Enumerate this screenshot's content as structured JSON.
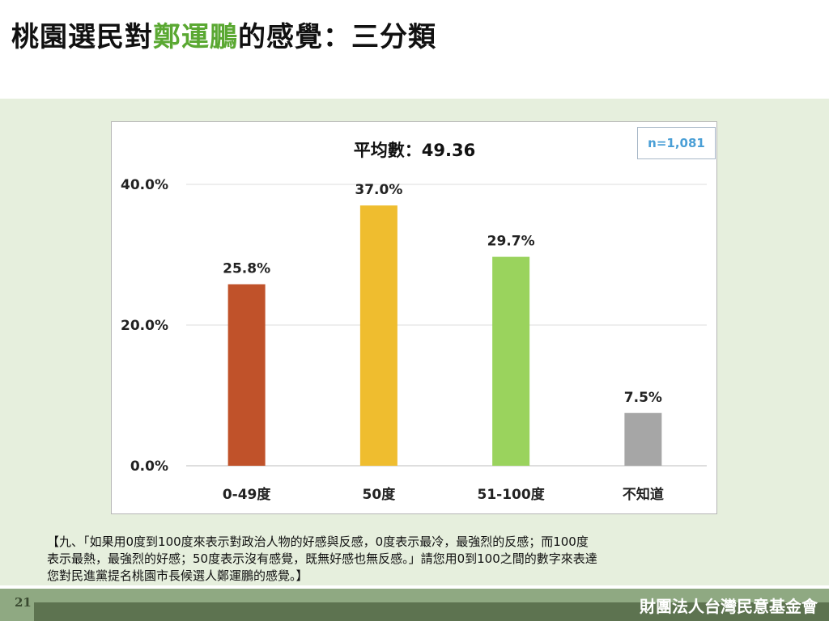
{
  "title": {
    "before": "桃園選民對",
    "highlight": "鄭運鵬",
    "after": "的感覺：三分類"
  },
  "sample_note": "n=1,081",
  "question_note": [
    "【九、「如果用0度到100度來表示對政治人物的好感與反感，0度表示最冷，最強烈的反感；而100度",
    "表示最熱，最強烈的好感；50度表示沒有感覺，既無好感也無反感。」請您用0到100之間的數字來表達",
    "您對民進黨提名桃園市長候選人鄭運鵬的感覺。】"
  ],
  "footer": {
    "page_number": "21",
    "organization": "財團法人台灣民意基金會"
  },
  "colors": {
    "title_highlight": "#5aa832",
    "band": "#e6efdd",
    "footer_light": "#8fa982",
    "footer_dark": "#5d7350"
  },
  "chart_data": {
    "type": "bar",
    "title": "平均數：49.36",
    "categories": [
      "0-49度",
      "50度",
      "51-100度",
      "不知道"
    ],
    "values": [
      25.8,
      37.0,
      29.7,
      7.5
    ],
    "value_labels": [
      "25.8%",
      "37.0%",
      "29.7%",
      "7.5%"
    ],
    "colors": [
      "#c0522a",
      "#efbd2f",
      "#9ad35d",
      "#a6a6a6"
    ],
    "ylim": [
      0,
      40
    ],
    "y_ticks": [
      0,
      20,
      40
    ],
    "y_tick_labels": [
      "0.0%",
      "20.0%",
      "40.0%"
    ],
    "xlabel": "",
    "ylabel": "",
    "grid": true,
    "legend": "none"
  }
}
